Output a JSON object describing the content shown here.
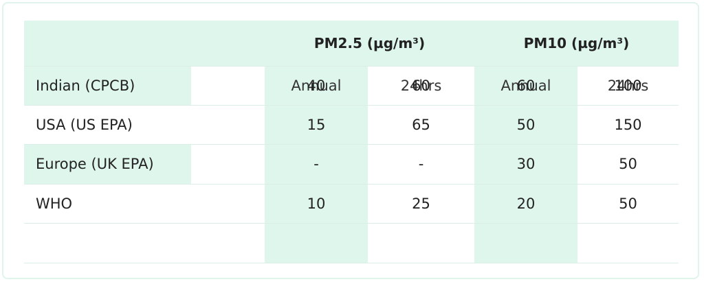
{
  "table": {
    "group_headers": [
      "PM2.5 (µg/m³)",
      "PM10 (µg/m³)"
    ],
    "sub_headers": [
      "Annual",
      "24hrs",
      "Annual",
      "24hrs"
    ],
    "rows": [
      [
        "Indian (CPCB)",
        40,
        60,
        60,
        100
      ],
      [
        "USA (US EPA)",
        15,
        65,
        50,
        150
      ],
      [
        "Europe (UK EPA)",
        "-",
        "-",
        30,
        50
      ],
      [
        "WHO",
        10,
        25,
        20,
        50
      ]
    ]
  }
}
